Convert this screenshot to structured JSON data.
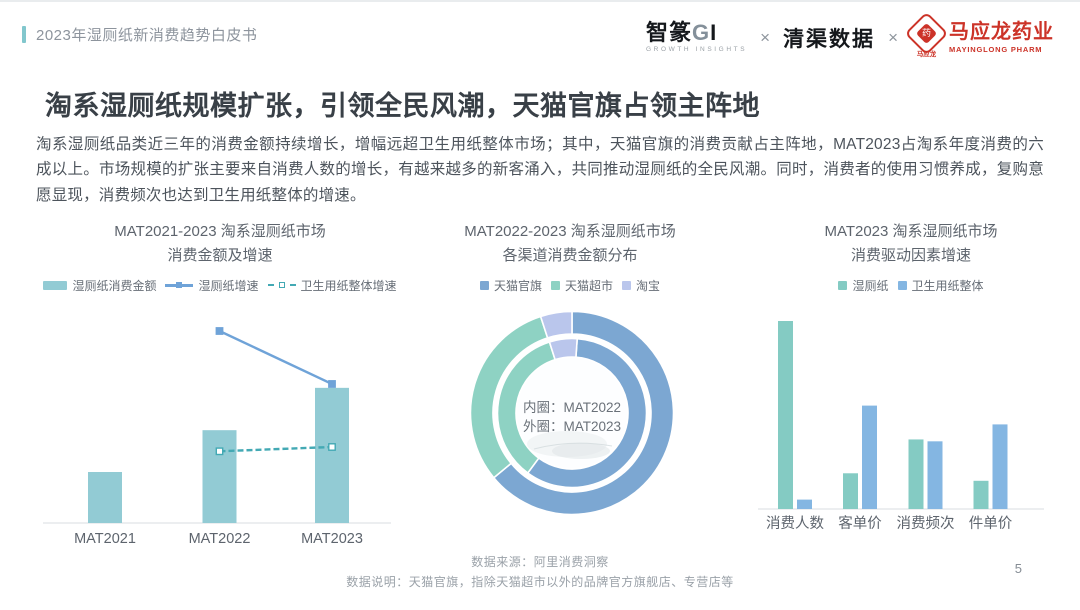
{
  "header": {
    "breadcrumb": "2023年湿厕纸新消费趋势白皮书",
    "logos": {
      "zhizhuan": {
        "cn": "智篆",
        "suffix_g": "G",
        "suffix_i": "I",
        "sub": "GROWTH  INSIGHTS"
      },
      "separator": "×",
      "qingqu": "清渠数据",
      "mayinglong": {
        "seal_text": "药",
        "seal_caption": "马应龙",
        "cn": "马应龙药业",
        "en": "MAYINGLONG PHARM"
      }
    }
  },
  "title": "淘系湿厕纸规模扩张，引领全民风潮，天猫官旗占领主阵地",
  "paragraph": "淘系湿厕纸品类近三年的消费金额持续增长，增幅远超卫生用纸整体市场；其中，天猫官旗的消费贡献占主阵地，MAT2023占淘系年度消费的六成以上。市场规模的扩张主要来自消费人数的增长，有越来越多的新客涌入，共同推动湿厕纸的全民风潮。同时，消费者的使用习惯养成，复购意愿显现，消费频次也达到卫生用纸整体的增速。",
  "theme": {
    "accent_teal": "#82c7cd",
    "axis": "#e0e4e8",
    "logo_red": "#cc3328",
    "text_dark": "#394047"
  },
  "chart_data": [
    {
      "type": "bar",
      "subtype": "bar+line combo",
      "title_line1": "MAT2021-2023 淘系湿厕纸市场",
      "title_line2": "消费金额及增速",
      "categories": [
        "MAT2021",
        "MAT2022",
        "MAT2023"
      ],
      "bar_series": {
        "name": "湿厕纸消费金额",
        "values": [
          100,
          182,
          265
        ],
        "color": "#92cbd4",
        "note": "坐标轴未标注，按柱高估算指数（MAT2021=100）"
      },
      "line_series": [
        {
          "name": "湿厕纸增速",
          "values": [
            null,
            82,
            45
          ],
          "unit": "%（估算）",
          "color": "#6fa3d8",
          "style": "solid",
          "marker": "filled"
        },
        {
          "name": "卫生用纸整体增速",
          "values": [
            null,
            -2,
            1
          ],
          "unit": "%（估算）",
          "color": "#43a9b4",
          "style": "dashed",
          "marker": "hollow"
        }
      ],
      "grid": false,
      "legend_position": "top"
    },
    {
      "type": "pie",
      "subtype": "double-ring donut",
      "title_line1": "MAT2022-2023 淘系湿厕纸市场",
      "title_line2": "各渠道消费金额分布",
      "legend": [
        "天猫官旗",
        "天猫超市",
        "淘宝"
      ],
      "colors": [
        "#7ca7d2",
        "#8ed2c3",
        "#bac6ec"
      ],
      "center_label_line1": "内圈：MAT2022",
      "center_label_line2": "外圈：MAT2023",
      "rings": [
        {
          "name": "MAT2022",
          "position": "inner",
          "values": [
            59,
            35,
            6
          ],
          "rotation_deg": 4,
          "note": "占比按弧长估算（%）"
        },
        {
          "name": "MAT2023",
          "position": "outer",
          "values": [
            64,
            31,
            5
          ],
          "rotation_deg": 0,
          "note": "占比按弧长估算（%）"
        }
      ]
    },
    {
      "type": "bar",
      "subtype": "grouped vertical bars",
      "title_line1": "MAT2023 淘系湿厕纸市场",
      "title_line2": "消费驱动因素增速",
      "categories": [
        "消费人数",
        "客单价",
        "消费频次",
        "件单价"
      ],
      "series": [
        {
          "name": "湿厕纸",
          "values": [
            100,
            19,
            37,
            15
          ],
          "color": "#84cbc3"
        },
        {
          "name": "卫生用纸整体",
          "values": [
            5,
            55,
            36,
            45
          ],
          "color": "#84b6e2"
        }
      ],
      "note": "坐标轴未标注，按柱高估算的相对增速（最高柱=100）",
      "grid": false,
      "legend_position": "top"
    }
  ],
  "footer": {
    "source": "数据来源：阿里消费洞察",
    "note": "数据说明：天猫官旗，指除天猫超市以外的品牌官方旗舰店、专营店等",
    "page": "5"
  }
}
